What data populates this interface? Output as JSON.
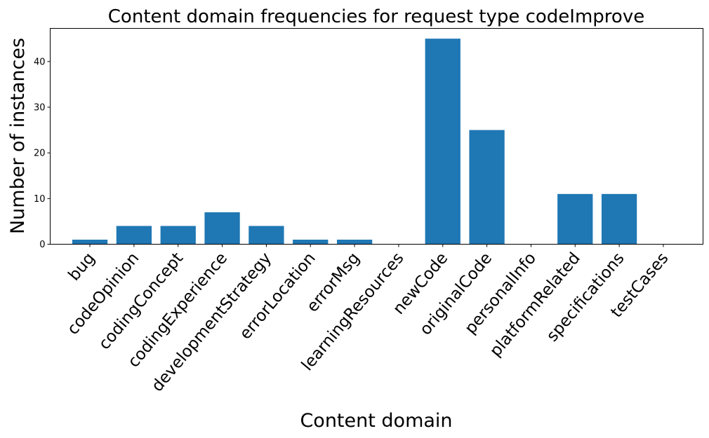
{
  "chart_data": {
    "type": "bar",
    "title": "Content domain frequencies for request type codeImprove",
    "xlabel": "Content domain",
    "ylabel": "Number of instances",
    "categories": [
      "bug",
      "codeOpinion",
      "codingConcept",
      "codingExperience",
      "developmentStrategy",
      "errorLocation",
      "errorMsg",
      "learningResources",
      "newCode",
      "originalCode",
      "personalInfo",
      "platformRelated",
      "specifications",
      "testCases"
    ],
    "values": [
      1,
      4,
      4,
      7,
      4,
      1,
      1,
      0,
      45,
      25,
      0,
      11,
      11,
      0
    ],
    "ylim": [
      0,
      47.25
    ],
    "yticks": [
      0,
      10,
      20,
      30,
      40
    ],
    "color": "#1f77b4",
    "grid": false
  }
}
